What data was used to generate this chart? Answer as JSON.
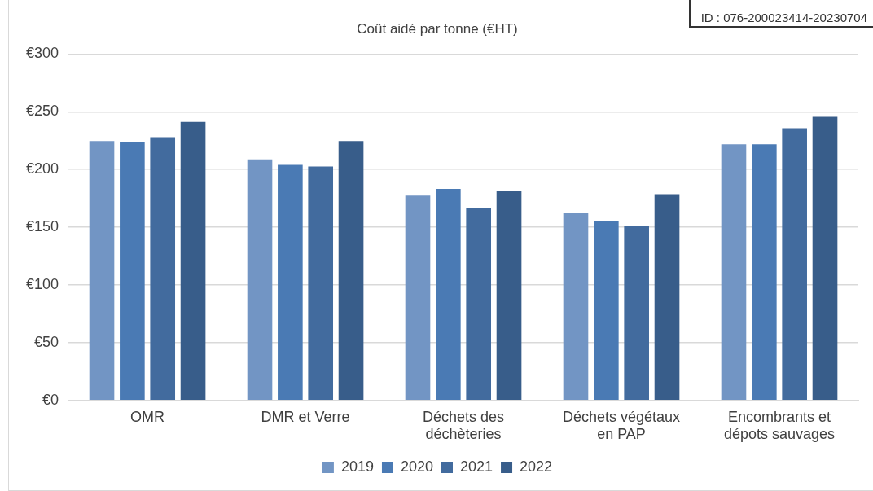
{
  "chart_data": {
    "type": "bar",
    "title": "Coût aidé par tonne (€HT)",
    "categories": [
      "OMR",
      "DMR et Verre",
      "Déchets des déchèteries",
      "Déchets végétaux en PAP",
      "Encombrants et dépots sauvages"
    ],
    "series": [
      {
        "name": "2019",
        "color": "#7295c4",
        "values": [
          224.6,
          208.7,
          177.4,
          162.3,
          221.9
        ]
      },
      {
        "name": "2020",
        "color": "#4a7ab4",
        "values": [
          223.4,
          204,
          183.2,
          155.5,
          221.9
        ]
      },
      {
        "name": "2021",
        "color": "#426b9e",
        "values": [
          228,
          202.6,
          166.3,
          151,
          235.8
        ]
      },
      {
        "name": "2022",
        "color": "#385d8a",
        "values": [
          241.3,
          224.6,
          181.2,
          178.7,
          245.6
        ]
      }
    ],
    "ylim": [
      0,
      300
    ],
    "yticks": [
      {
        "value": 0,
        "label": "€0"
      },
      {
        "value": 50,
        "label": "€50"
      },
      {
        "value": 100,
        "label": "€100"
      },
      {
        "value": 150,
        "label": "€150"
      },
      {
        "value": 200,
        "label": "€200"
      },
      {
        "value": 250,
        "label": "€250"
      },
      {
        "value": 300,
        "label": "€300"
      }
    ],
    "grid": "y",
    "legend": "bottom",
    "annotations": [
      "ID : 076-200023414-20230704"
    ]
  }
}
